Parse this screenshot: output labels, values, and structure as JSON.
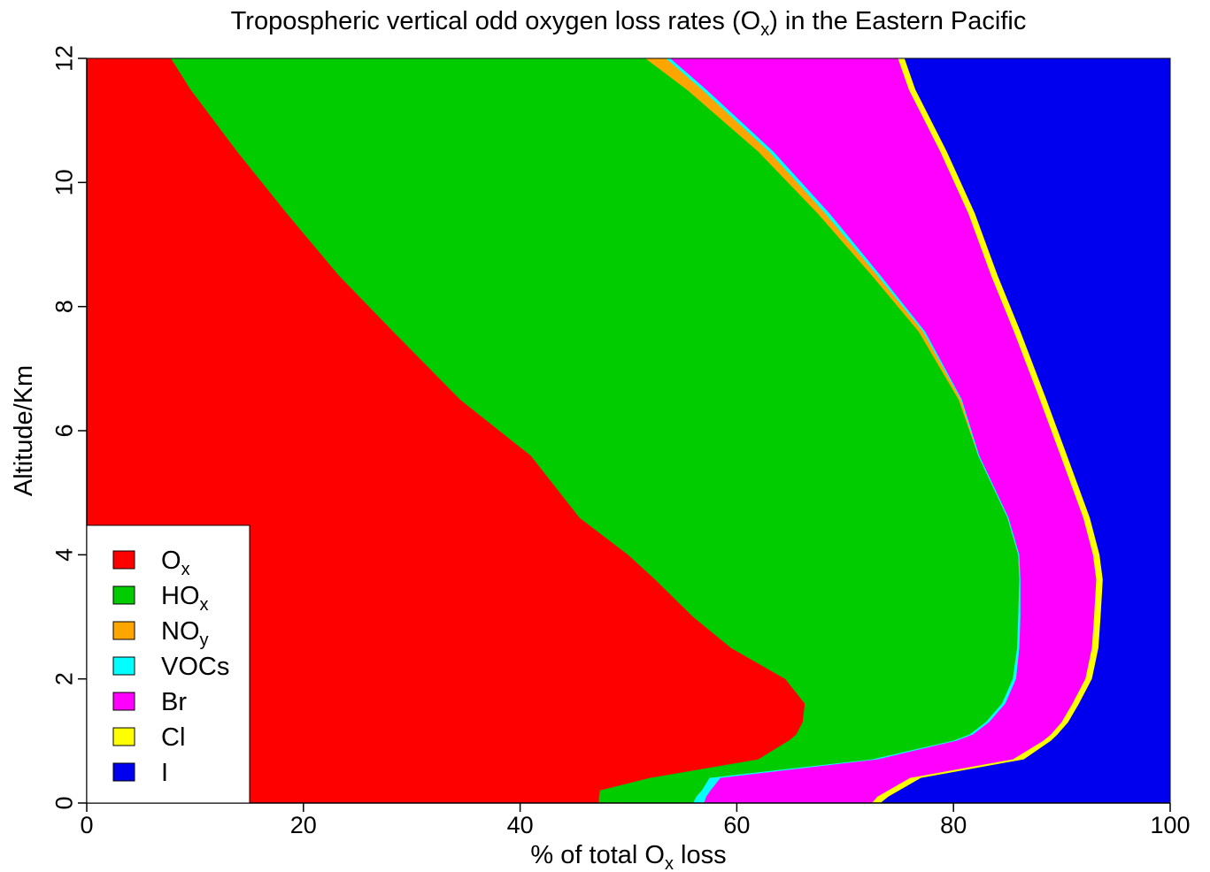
{
  "chart_data": {
    "type": "area",
    "orientation": "horizontal-stacked",
    "title": {
      "main": "Tropospheric vertical odd oxygen loss rates (O",
      "sub": "x",
      "tail": ") in the Eastern Pacific"
    },
    "xlabel": {
      "main": "% of total O",
      "sub": "x",
      "tail": " loss"
    },
    "ylabel": "Altitude/Km",
    "xlim": [
      0,
      100
    ],
    "ylim": [
      0,
      12
    ],
    "x_ticks": [
      "0",
      "20",
      "40",
      "60",
      "80",
      "100"
    ],
    "y_ticks": [
      "0",
      "2",
      "4",
      "6",
      "8",
      "10",
      "12"
    ],
    "legend_position": "bottom-left",
    "altitude_km": [
      0.0,
      0.1,
      0.2,
      0.4,
      0.7,
      1.0,
      1.1,
      1.3,
      1.6,
      2.0,
      2.5,
      3.0,
      3.6,
      4.0,
      4.6,
      5.6,
      6.5,
      7.6,
      8.5,
      9.5,
      10.5,
      11.5,
      12.0
    ],
    "series": [
      {
        "name": "O",
        "sub": "x",
        "color": "#ff0000",
        "cumulative": [
          47.3,
          47.3,
          47.4,
          52.0,
          62.0,
          64.8,
          65.5,
          66.1,
          66.3,
          64.5,
          59.5,
          56.0,
          52.5,
          50.0,
          45.5,
          41.0,
          34.5,
          28.3,
          23.3,
          18.5,
          13.9,
          9.6,
          7.8
        ]
      },
      {
        "name": "HO",
        "sub": "x",
        "color": "#00cc00",
        "cumulative": [
          56.0,
          56.3,
          56.8,
          57.5,
          72.5,
          80.0,
          81.5,
          83.0,
          84.5,
          85.5,
          85.9,
          86.0,
          86.1,
          86.0,
          85.0,
          82.3,
          80.5,
          76.8,
          72.5,
          67.5,
          62.0,
          55.4,
          51.6
        ]
      },
      {
        "name": "NO",
        "sub": "y",
        "color": "#ffa500",
        "cumulative": [
          56.0,
          56.3,
          56.8,
          57.5,
          72.5,
          80.0,
          81.5,
          83.0,
          84.5,
          85.5,
          85.9,
          86.0,
          86.1,
          86.0,
          85.0,
          82.3,
          80.7,
          77.2,
          73.0,
          68.2,
          63.0,
          56.8,
          53.5
        ]
      },
      {
        "name": "VOCs",
        "sub": "",
        "color": "#00ffff",
        "cumulative": [
          57.0,
          57.2,
          57.6,
          58.5,
          73.0,
          80.3,
          81.8,
          83.3,
          84.8,
          85.8,
          86.1,
          86.2,
          86.2,
          86.1,
          85.1,
          82.4,
          80.8,
          77.4,
          73.3,
          68.6,
          63.4,
          57.2,
          53.9
        ]
      },
      {
        "name": "Br",
        "sub": "",
        "color": "#ff00ff",
        "cumulative": [
          72.5,
          73.0,
          74.0,
          76.0,
          85.5,
          88.3,
          89.0,
          90.0,
          91.0,
          92.2,
          92.8,
          93.0,
          93.2,
          92.9,
          92.0,
          89.9,
          88.0,
          85.6,
          83.5,
          81.4,
          78.8,
          75.9,
          74.9
        ]
      },
      {
        "name": "Cl",
        "sub": "",
        "color": "#ffff00",
        "cumulative": [
          73.3,
          74.0,
          75.0,
          77.0,
          86.5,
          89.0,
          89.6,
          90.6,
          91.6,
          92.8,
          93.4,
          93.6,
          93.8,
          93.5,
          92.6,
          90.5,
          88.6,
          86.2,
          84.1,
          82.0,
          79.4,
          76.5,
          75.5
        ]
      },
      {
        "name": "I",
        "sub": "",
        "color": "#0000ee",
        "cumulative": [
          100,
          100,
          100,
          100,
          100,
          100,
          100,
          100,
          100,
          100,
          100,
          100,
          100,
          100,
          100,
          100,
          100,
          100,
          100,
          100,
          100,
          100,
          100
        ]
      }
    ]
  }
}
